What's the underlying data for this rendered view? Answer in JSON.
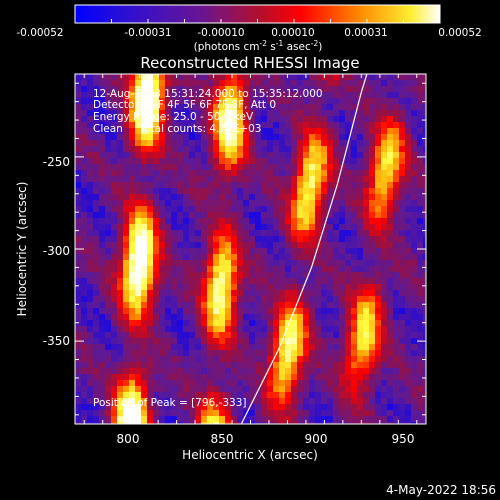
{
  "colorbar": {
    "ticks": [
      "-0.00052",
      "-0.00031",
      "-0.00010",
      "0.00010",
      "0.00031",
      "0.00052"
    ],
    "unit_parts": [
      "(photons cm",
      "-2",
      " s",
      "-1",
      " asec",
      "-2",
      ")"
    ]
  },
  "header": {
    "title": "Reconstructed RHESSI Image",
    "info_lines": [
      "12-Aug-2003 15:31:24.000 to 15:35:12.000",
      "Detectors: 3F 4F 5F 6F 7F 8F, Att 0",
      "Energy Range: 25.0 - 50.0 keV",
      "Clean     Total counts: 4.79E+03"
    ],
    "peak_label": "Position of Peak = [796,-333]"
  },
  "footer": {
    "timestamp": "4-May-2022 18:56"
  },
  "chart_data": {
    "type": "heatmap",
    "title": "Reconstructed RHESSI Image",
    "xlabel": "Heliocentric X (arcsec)",
    "ylabel": "Heliocentric Y (arcsec)",
    "xlim": [
      770,
      960
    ],
    "ylim": [
      -395,
      -205
    ],
    "x_ticks": [
      800,
      850,
      900,
      950
    ],
    "y_ticks": [
      -250,
      -300,
      -350
    ],
    "x_tick_labels": [
      "800",
      "850",
      "900",
      "950"
    ],
    "y_tick_labels": [
      "-250",
      "-300",
      "-350"
    ],
    "colorbar_range": [
      -0.00052,
      0.00052
    ],
    "colormap": [
      "#0000ff",
      "#5a1a9a",
      "#9a1040",
      "#ff0000",
      "#ffa000",
      "#ffff40",
      "#ffffff"
    ],
    "limb_curve": [
      [
        860,
        -395
      ],
      [
        880,
        -355
      ],
      [
        898,
        -310
      ],
      [
        912,
        -265
      ],
      [
        925,
        -215
      ],
      [
        928,
        -205
      ]
    ],
    "peak": [
      796,
      -333
    ],
    "stripes": [
      {
        "x_at_top": 810,
        "x_at_bottom": 800,
        "brightness": 1.0
      },
      {
        "x_at_top": 855,
        "x_at_bottom": 845,
        "brightness": 0.8
      },
      {
        "x_at_top": 905,
        "x_at_bottom": 880,
        "brightness": 0.75
      },
      {
        "x_at_top": 945,
        "x_at_bottom": 920,
        "brightness": 0.65
      }
    ]
  }
}
